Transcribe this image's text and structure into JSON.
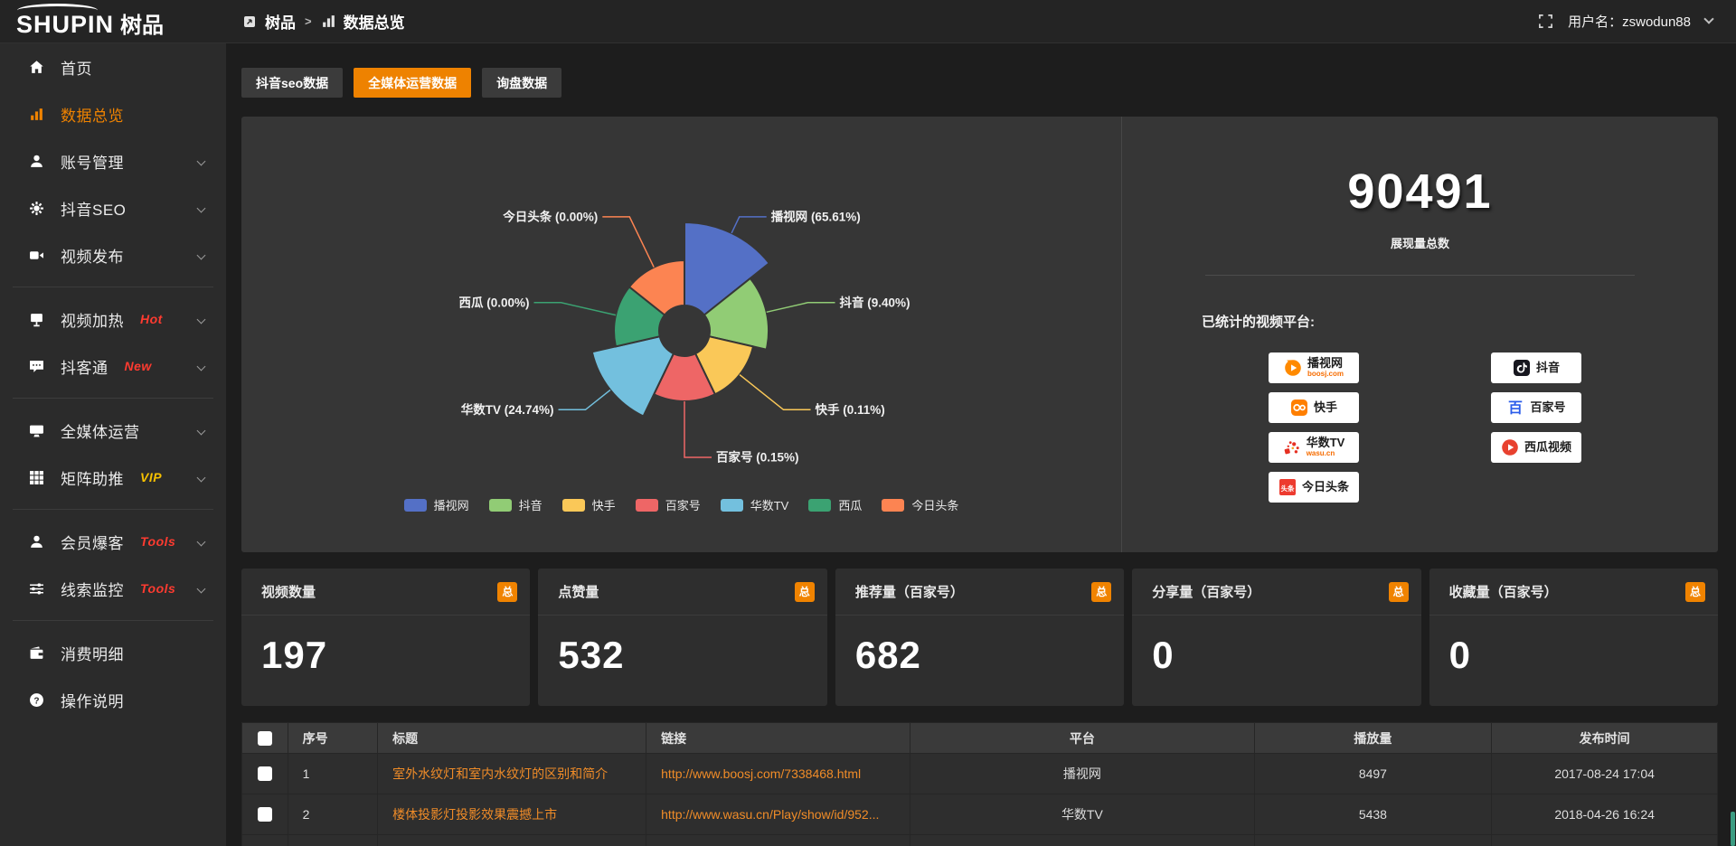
{
  "header": {
    "logo_en": "SHUPIN",
    "logo_cn": "树品",
    "breadcrumb": [
      "树品",
      "数据总览"
    ],
    "breadcrumb_sep": ">",
    "username": "用户名：zswodun88"
  },
  "sidebar": {
    "items": [
      {
        "id": "home",
        "label": "首页",
        "icon": "home-icon"
      },
      {
        "id": "data-overview",
        "label": "数据总览",
        "icon": "bar-chart-icon",
        "active": true
      },
      {
        "id": "account-manage",
        "label": "账号管理",
        "icon": "user-icon",
        "expandable": true
      },
      {
        "id": "douyin-seo",
        "label": "抖音SEO",
        "icon": "gear-icon",
        "expandable": true
      },
      {
        "id": "video-publish",
        "label": "视频发布",
        "icon": "video-icon",
        "expandable": true
      },
      {
        "divider": true
      },
      {
        "id": "video-heat",
        "label": "视频加热",
        "icon": "screen-icon",
        "badge": "Hot",
        "badge_color": "#ff3b30",
        "expandable": true
      },
      {
        "id": "doketong",
        "label": "抖客通",
        "icon": "chat-icon",
        "badge": "New",
        "badge_color": "#ff3b30",
        "expandable": true
      },
      {
        "divider": true
      },
      {
        "id": "all-media",
        "label": "全媒体运营",
        "icon": "monitor-icon",
        "expandable": true
      },
      {
        "id": "matrix-boost",
        "label": "矩阵助推",
        "icon": "grid-icon",
        "badge": "VIP",
        "badge_color": "#f5c000",
        "expandable": true
      },
      {
        "divider": true
      },
      {
        "id": "member-burst",
        "label": "会员爆客",
        "icon": "member-icon",
        "badge": "Tools",
        "badge_color": "#ff3b30",
        "expandable": true
      },
      {
        "id": "clue-monitor",
        "label": "线索监控",
        "icon": "sliders-icon",
        "badge": "Tools",
        "badge_color": "#ff3b30",
        "expandable": true
      },
      {
        "divider": true
      },
      {
        "id": "consume-detail",
        "label": "消费明细",
        "icon": "wallet-icon"
      },
      {
        "id": "help",
        "label": "操作说明",
        "icon": "question-icon"
      }
    ]
  },
  "tabs": [
    {
      "id": "douyin-seo-data",
      "label": "抖音seo数据",
      "active": false
    },
    {
      "id": "all-media-data",
      "label": "全媒体运营数据",
      "active": true
    },
    {
      "id": "inquiry-data",
      "label": "询盘数据",
      "active": false
    }
  ],
  "chart_data": {
    "type": "pie",
    "variant": "nightingale-rose",
    "labels": [
      "播视网",
      "抖音",
      "快手",
      "百家号",
      "华数TV",
      "西瓜",
      "今日头条"
    ],
    "values_percent": [
      65.61,
      9.4,
      0.11,
      0.15,
      24.74,
      0,
      0
    ],
    "colors": [
      "#5470c6",
      "#91cc75",
      "#fac858",
      "#ee6666",
      "#73c0de",
      "#3ba272",
      "#fc8452"
    ],
    "label_format": "{name} ({percent}%)",
    "legend_position": "bottom",
    "start_angle_deg": 0,
    "clockwise": true
  },
  "summary": {
    "total_value": "90491",
    "total_label": "展现量总数",
    "platforms_label": "已统计的视频平台:",
    "platforms_left": [
      {
        "id": "boshiwang",
        "name": "播视网",
        "sub": "boosj.com",
        "icon": "boosj-play-icon"
      },
      {
        "id": "kuaishou",
        "name": "快手",
        "icon": "kuaishou-icon"
      },
      {
        "id": "washutv",
        "name": "华数TV",
        "sub": "wasu.cn",
        "icon": "wasu-icon"
      },
      {
        "id": "toutiao",
        "name": "今日头条",
        "icon": "toutiao-icon",
        "icon_text": "头条"
      }
    ],
    "platforms_right": [
      {
        "id": "douyin",
        "name": "抖音",
        "icon": "douyin-icon"
      },
      {
        "id": "baijiahao",
        "name": "百家号",
        "icon": "baijiahao-icon",
        "icon_text": "百"
      },
      {
        "id": "xigua",
        "name": "西瓜视频",
        "icon": "xigua-icon"
      }
    ]
  },
  "stat_cards": [
    {
      "label": "视频数量",
      "badge": "总",
      "value": "197"
    },
    {
      "label": "点赞量",
      "badge": "总",
      "value": "532"
    },
    {
      "label": "推荐量（百家号）",
      "badge": "总",
      "value": "682"
    },
    {
      "label": "分享量（百家号）",
      "badge": "总",
      "value": "0"
    },
    {
      "label": "收藏量（百家号）",
      "badge": "总",
      "value": "0"
    }
  ],
  "table": {
    "columns": [
      "",
      "序号",
      "标题",
      "链接",
      "平台",
      "播放量",
      "发布时间"
    ],
    "rows": [
      {
        "no": "1",
        "title": "室外水纹灯和室内水纹灯的区别和简介",
        "link": "http://www.boosj.com/7338468.html",
        "platform": "播视网",
        "views": "8497",
        "time": "2017-08-24 17:04"
      },
      {
        "no": "2",
        "title": "楼体投影灯投影效果震撼上市",
        "link": "http://www.wasu.cn/Play/show/id/952...",
        "platform": "华数TV",
        "views": "5438",
        "time": "2018-04-26 16:24"
      }
    ]
  },
  "colors": {
    "accent_orange": "#ee8200",
    "link_orange": "#f08c28",
    "panel_bg": "#363636",
    "sidebar_bg": "#2b2b2b",
    "page_bg": "#1d1d1d",
    "badge_red": "#ff3b30",
    "badge_gold": "#f5c000"
  }
}
